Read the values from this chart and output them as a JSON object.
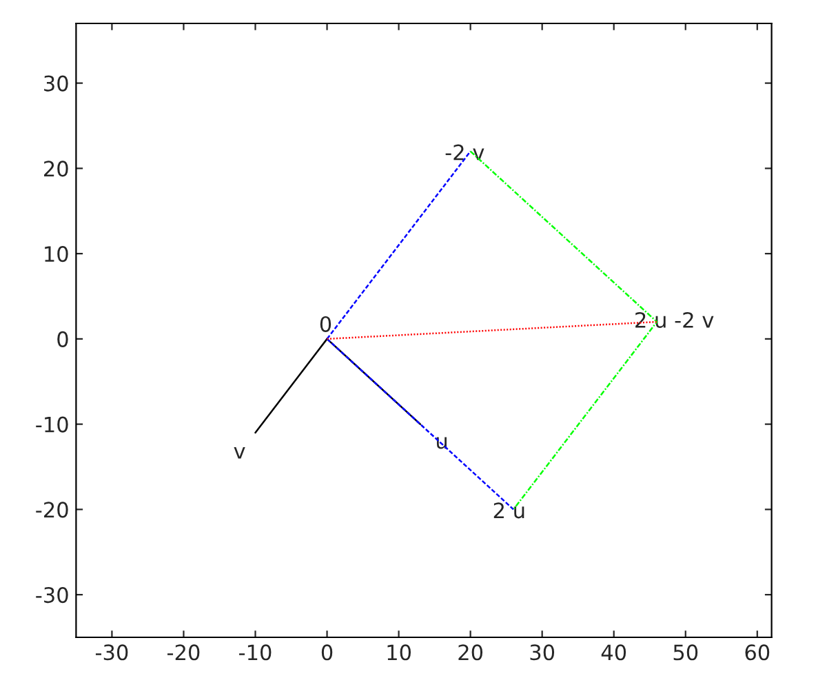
{
  "chart_data": {
    "type": "line",
    "xlim": [
      -35,
      62
    ],
    "ylim": [
      -35,
      37
    ],
    "xticks": [
      -30,
      -20,
      -10,
      0,
      10,
      20,
      30,
      40,
      50,
      60
    ],
    "yticks": [
      -30,
      -20,
      -10,
      0,
      10,
      20,
      30
    ],
    "grid": false,
    "legend": false,
    "series": [
      {
        "color": "#000000",
        "line_style": "solid",
        "x": [
          0,
          13
        ],
        "values": [
          0,
          -10
        ]
      },
      {
        "color": "#000000",
        "line_style": "solid",
        "x": [
          0,
          -10
        ],
        "values": [
          0,
          -11
        ]
      },
      {
        "color": "#0000ff",
        "line_style": "dashed",
        "x": [
          0,
          26
        ],
        "values": [
          0,
          -20
        ]
      },
      {
        "color": "#0000ff",
        "line_style": "dashed",
        "x": [
          0,
          20
        ],
        "values": [
          0,
          22
        ]
      },
      {
        "color": "#00ff00",
        "line_style": "dashdot",
        "x": [
          20,
          46,
          26
        ],
        "values": [
          22,
          2,
          -20
        ]
      },
      {
        "color": "#ff0000",
        "line_style": "dotted",
        "x": [
          0,
          46
        ],
        "values": [
          0,
          2
        ]
      }
    ],
    "annotations": [
      {
        "text": "0",
        "x": 0,
        "y": 0
      },
      {
        "text": "u",
        "x": 13,
        "y": -10
      },
      {
        "text": "v",
        "x": -10,
        "y": -11
      },
      {
        "text": "2 u",
        "x": 26,
        "y": -20
      },
      {
        "text": "-2 v",
        "x": 20,
        "y": 22
      },
      {
        "text": "2 u -2 v",
        "x": 46,
        "y": 2
      }
    ]
  }
}
